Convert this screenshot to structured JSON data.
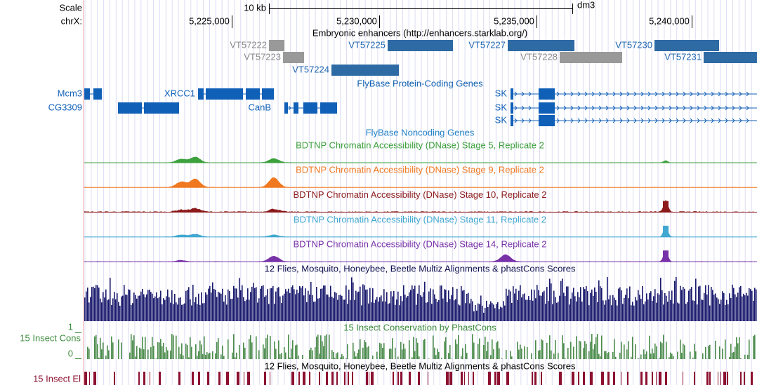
{
  "ruler": {
    "scale_label": "Scale",
    "scale_bar": "10 kb",
    "assembly": "dm3",
    "chrom": "chrX:",
    "positions": [
      "5,225,000",
      "5,230,000",
      "5,235,000",
      "5,240,000"
    ]
  },
  "enhancers": {
    "title": "Embryonic enhancers (http://enhancers.starklab.org/)",
    "items": [
      "VT57222",
      "VT57223",
      "VT57225",
      "VT57227",
      "VT57228",
      "VT57230",
      "VT57231",
      "VT57224"
    ]
  },
  "genes": {
    "title": "FlyBase Protein-Coding Genes",
    "items": [
      "Mcm3",
      "CG3309",
      "XRCC1",
      "CanB",
      "SK",
      "SK",
      "SK"
    ]
  },
  "noncoding": {
    "title": "FlyBase Noncoding Genes"
  },
  "dnase": [
    "BDTNP Chromatin Accessibility (DNase) Stage 5, Replicate 2",
    "BDTNP Chromatin Accessibility (DNase) Stage 9, Replicate 2",
    "BDTNP Chromatin Accessibility (DNase) Stage 10, Replicate 2",
    "BDTNP Chromatin Accessibility (DNase) Stage 11, Replicate 2",
    "BDTNP Chromatin Accessibility (DNase) Stage 14, Replicate 2"
  ],
  "multiz": {
    "title": "12 Flies, Mosquito, Honeybee, Beetle Multiz Alignments & phastCons Scores"
  },
  "phastcons": {
    "title": "15 Insect Conservation by PhastCons",
    "side_label": "15 Insect Cons",
    "max_label": "1",
    "min_label": "0"
  },
  "elements": {
    "title": "12 Flies, Mosquito, Honeybee, Beetle Multiz Alignments & phastCons Scores",
    "side_label": "15 Insect El"
  }
}
